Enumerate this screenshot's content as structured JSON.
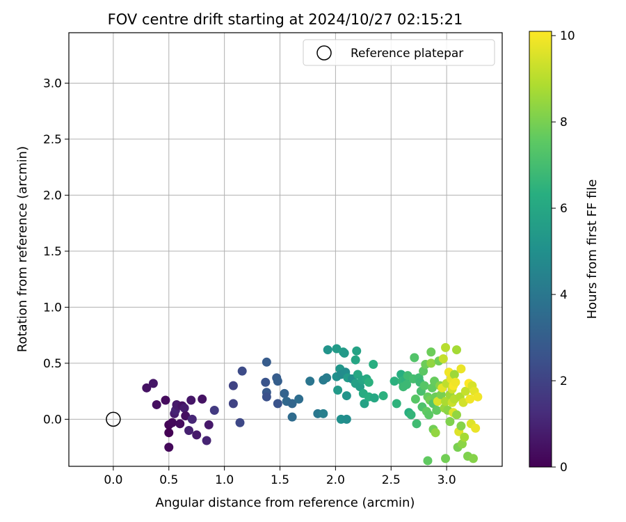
{
  "chart_data": {
    "type": "scatter",
    "title": "FOV centre drift starting at 2024/10/27 02:15:21",
    "xlabel": "Angular distance from reference (arcmin)",
    "ylabel": "Rotation from reference (arcmin)",
    "xlim": [
      -0.4,
      3.5
    ],
    "ylim": [
      -0.42,
      3.45
    ],
    "x_ticks": [
      0.0,
      0.5,
      1.0,
      1.5,
      2.0,
      2.5,
      3.0
    ],
    "y_ticks": [
      0.0,
      0.5,
      1.0,
      1.5,
      2.0,
      2.5,
      3.0
    ],
    "grid": true,
    "legend": {
      "placement": "top-right",
      "entries": [
        "Reference platepar"
      ]
    },
    "reference_point": {
      "x": 0.0,
      "y": 0.0,
      "marker": "open-circle"
    },
    "colorbar": {
      "label": "Hours from first FF file",
      "min": 0,
      "max": 10.1,
      "ticks": [
        0,
        2,
        4,
        6,
        8,
        10
      ],
      "colormap": "viridis"
    },
    "points": [
      {
        "x": 0.3,
        "y": 0.28,
        "h": 0.5
      },
      {
        "x": 0.36,
        "y": 0.32,
        "h": 0.6
      },
      {
        "x": 0.39,
        "y": 0.13,
        "h": 0.4
      },
      {
        "x": 0.47,
        "y": 0.17,
        "h": 0.3
      },
      {
        "x": 0.5,
        "y": -0.05,
        "h": 0.1
      },
      {
        "x": 0.5,
        "y": -0.12,
        "h": 0.0
      },
      {
        "x": 0.5,
        "y": -0.25,
        "h": 0.2
      },
      {
        "x": 0.53,
        "y": -0.03,
        "h": 0.2
      },
      {
        "x": 0.55,
        "y": 0.05,
        "h": 0.8
      },
      {
        "x": 0.56,
        "y": 0.08,
        "h": 1.0
      },
      {
        "x": 0.57,
        "y": 0.13,
        "h": 0.6
      },
      {
        "x": 0.58,
        "y": 0.12,
        "h": 0.7
      },
      {
        "x": 0.6,
        "y": -0.04,
        "h": 0.3
      },
      {
        "x": 0.62,
        "y": 0.12,
        "h": 0.5
      },
      {
        "x": 0.64,
        "y": 0.1,
        "h": 0.8
      },
      {
        "x": 0.65,
        "y": 0.03,
        "h": 0.4
      },
      {
        "x": 0.68,
        "y": -0.1,
        "h": 0.9
      },
      {
        "x": 0.7,
        "y": 0.17,
        "h": 0.6
      },
      {
        "x": 0.71,
        "y": 0.0,
        "h": 1.1
      },
      {
        "x": 0.75,
        "y": -0.14,
        "h": 0.7
      },
      {
        "x": 0.8,
        "y": 0.18,
        "h": 0.5
      },
      {
        "x": 0.84,
        "y": -0.19,
        "h": 1.0
      },
      {
        "x": 0.86,
        "y": -0.05,
        "h": 0.7
      },
      {
        "x": 0.91,
        "y": 0.08,
        "h": 1.7
      },
      {
        "x": 1.08,
        "y": 0.3,
        "h": 2.0
      },
      {
        "x": 1.08,
        "y": 0.14,
        "h": 2.0
      },
      {
        "x": 1.14,
        "y": -0.03,
        "h": 2.2
      },
      {
        "x": 1.16,
        "y": 0.43,
        "h": 2.3
      },
      {
        "x": 1.37,
        "y": 0.33,
        "h": 2.6
      },
      {
        "x": 1.38,
        "y": 0.51,
        "h": 2.9
      },
      {
        "x": 1.38,
        "y": 0.24,
        "h": 2.8
      },
      {
        "x": 1.38,
        "y": 0.2,
        "h": 2.5
      },
      {
        "x": 1.47,
        "y": 0.37,
        "h": 2.9
      },
      {
        "x": 1.48,
        "y": 0.34,
        "h": 3.0
      },
      {
        "x": 1.48,
        "y": 0.14,
        "h": 2.6
      },
      {
        "x": 1.54,
        "y": 0.23,
        "h": 3.2
      },
      {
        "x": 1.56,
        "y": 0.16,
        "h": 3.4
      },
      {
        "x": 1.61,
        "y": 0.02,
        "h": 3.5
      },
      {
        "x": 1.61,
        "y": 0.14,
        "h": 3.3
      },
      {
        "x": 1.67,
        "y": 0.18,
        "h": 3.6
      },
      {
        "x": 1.77,
        "y": 0.34,
        "h": 3.9
      },
      {
        "x": 1.84,
        "y": 0.05,
        "h": 4.0
      },
      {
        "x": 1.89,
        "y": 0.35,
        "h": 4.1
      },
      {
        "x": 1.89,
        "y": 0.05,
        "h": 4.3
      },
      {
        "x": 1.92,
        "y": 0.37,
        "h": 4.2
      },
      {
        "x": 1.93,
        "y": 0.62,
        "h": 5.2
      },
      {
        "x": 2.01,
        "y": 0.63,
        "h": 5.5
      },
      {
        "x": 2.01,
        "y": 0.38,
        "h": 5.0
      },
      {
        "x": 2.02,
        "y": 0.26,
        "h": 5.4
      },
      {
        "x": 2.04,
        "y": 0.45,
        "h": 5.3
      },
      {
        "x": 2.05,
        "y": 0.4,
        "h": 4.8
      },
      {
        "x": 2.05,
        "y": 0.0,
        "h": 5.0
      },
      {
        "x": 2.07,
        "y": 0.6,
        "h": 5.6
      },
      {
        "x": 2.08,
        "y": 0.59,
        "h": 5.4
      },
      {
        "x": 2.09,
        "y": 0.42,
        "h": 4.9
      },
      {
        "x": 2.1,
        "y": 0.21,
        "h": 5.2
      },
      {
        "x": 2.1,
        "y": 0.0,
        "h": 4.9
      },
      {
        "x": 2.11,
        "y": 0.37,
        "h": 5.5
      },
      {
        "x": 2.15,
        "y": 0.36,
        "h": 5.0
      },
      {
        "x": 2.18,
        "y": 0.32,
        "h": 5.7
      },
      {
        "x": 2.18,
        "y": 0.53,
        "h": 5.9
      },
      {
        "x": 2.19,
        "y": 0.61,
        "h": 5.8
      },
      {
        "x": 2.2,
        "y": 0.4,
        "h": 6.0
      },
      {
        "x": 2.22,
        "y": 0.29,
        "h": 5.6
      },
      {
        "x": 2.24,
        "y": 0.35,
        "h": 5.9
      },
      {
        "x": 2.25,
        "y": 0.23,
        "h": 6.2
      },
      {
        "x": 2.26,
        "y": 0.14,
        "h": 5.8
      },
      {
        "x": 2.28,
        "y": 0.36,
        "h": 6.1
      },
      {
        "x": 2.3,
        "y": 0.33,
        "h": 6.4
      },
      {
        "x": 2.3,
        "y": 0.2,
        "h": 6.3
      },
      {
        "x": 2.34,
        "y": 0.49,
        "h": 6.3
      },
      {
        "x": 2.35,
        "y": 0.19,
        "h": 6.0
      },
      {
        "x": 2.43,
        "y": 0.21,
        "h": 6.4
      },
      {
        "x": 2.53,
        "y": 0.34,
        "h": 6.4
      },
      {
        "x": 2.55,
        "y": 0.14,
        "h": 6.5
      },
      {
        "x": 2.59,
        "y": 0.4,
        "h": 6.3
      },
      {
        "x": 2.6,
        "y": 0.34,
        "h": 6.6
      },
      {
        "x": 2.61,
        "y": 0.29,
        "h": 6.8
      },
      {
        "x": 2.63,
        "y": 0.36,
        "h": 6.5
      },
      {
        "x": 2.64,
        "y": 0.31,
        "h": 6.8
      },
      {
        "x": 2.65,
        "y": 0.39,
        "h": 6.9
      },
      {
        "x": 2.66,
        "y": 0.06,
        "h": 6.3
      },
      {
        "x": 2.68,
        "y": 0.04,
        "h": 6.6
      },
      {
        "x": 2.7,
        "y": 0.36,
        "h": 7.0
      },
      {
        "x": 2.71,
        "y": 0.55,
        "h": 7.3
      },
      {
        "x": 2.72,
        "y": 0.18,
        "h": 7.4
      },
      {
        "x": 2.73,
        "y": -0.04,
        "h": 6.9
      },
      {
        "x": 2.75,
        "y": 0.37,
        "h": 6.9
      },
      {
        "x": 2.76,
        "y": 0.33,
        "h": 6.8
      },
      {
        "x": 2.77,
        "y": 0.25,
        "h": 7.1
      },
      {
        "x": 2.78,
        "y": 0.11,
        "h": 7.2
      },
      {
        "x": 2.79,
        "y": 0.43,
        "h": 7.5
      },
      {
        "x": 2.8,
        "y": 0.3,
        "h": 7.4
      },
      {
        "x": 2.81,
        "y": 0.49,
        "h": 7.8
      },
      {
        "x": 2.82,
        "y": 0.07,
        "h": 7.6
      },
      {
        "x": 2.83,
        "y": 0.2,
        "h": 7.7
      },
      {
        "x": 2.84,
        "y": 0.04,
        "h": 7.5
      },
      {
        "x": 2.85,
        "y": 0.17,
        "h": 7.9
      },
      {
        "x": 2.86,
        "y": 0.5,
        "h": 8.4
      },
      {
        "x": 2.86,
        "y": 0.6,
        "h": 7.8
      },
      {
        "x": 2.87,
        "y": 0.28,
        "h": 7.6
      },
      {
        "x": 2.88,
        "y": -0.09,
        "h": 7.9
      },
      {
        "x": 2.88,
        "y": 0.14,
        "h": 7.3
      },
      {
        "x": 2.89,
        "y": 0.34,
        "h": 7.7
      },
      {
        "x": 2.9,
        "y": 0.2,
        "h": 7.8
      },
      {
        "x": 2.9,
        "y": -0.12,
        "h": 8.4
      },
      {
        "x": 2.91,
        "y": 0.08,
        "h": 7.6
      },
      {
        "x": 2.92,
        "y": 0.16,
        "h": 9.5
      },
      {
        "x": 2.93,
        "y": 0.52,
        "h": 7.9
      },
      {
        "x": 2.94,
        "y": 0.3,
        "h": 8.2
      },
      {
        "x": 2.95,
        "y": 0.22,
        "h": 8.0
      },
      {
        "x": 2.96,
        "y": 0.28,
        "h": 9.7
      },
      {
        "x": 2.97,
        "y": 0.54,
        "h": 9.2
      },
      {
        "x": 2.98,
        "y": 0.1,
        "h": 8.5
      },
      {
        "x": 2.99,
        "y": 0.64,
        "h": 9.0
      },
      {
        "x": 2.99,
        "y": 0.16,
        "h": 8.8
      },
      {
        "x": 3.0,
        "y": 0.32,
        "h": 9.1
      },
      {
        "x": 3.01,
        "y": 0.08,
        "h": 8.3
      },
      {
        "x": 3.02,
        "y": 0.42,
        "h": 9.9
      },
      {
        "x": 3.03,
        "y": 0.22,
        "h": 8.6
      },
      {
        "x": 3.03,
        "y": -0.02,
        "h": 8.1
      },
      {
        "x": 3.04,
        "y": 0.36,
        "h": 9.8
      },
      {
        "x": 3.05,
        "y": 0.27,
        "h": 9.4
      },
      {
        "x": 3.05,
        "y": 0.15,
        "h": 9.3
      },
      {
        "x": 3.06,
        "y": 0.3,
        "h": 10.0
      },
      {
        "x": 3.06,
        "y": 0.06,
        "h": 9.6
      },
      {
        "x": 3.07,
        "y": 0.4,
        "h": 8.6
      },
      {
        "x": 3.07,
        "y": 0.18,
        "h": 9.0
      },
      {
        "x": 3.08,
        "y": 0.33,
        "h": 9.9
      },
      {
        "x": 3.09,
        "y": 0.62,
        "h": 8.7
      },
      {
        "x": 3.09,
        "y": 0.04,
        "h": 8.4
      },
      {
        "x": 3.1,
        "y": -0.25,
        "h": 8.0
      },
      {
        "x": 3.11,
        "y": -0.11,
        "h": 9.6
      },
      {
        "x": 3.12,
        "y": 0.2,
        "h": 8.9
      },
      {
        "x": 3.13,
        "y": 0.45,
        "h": 9.8
      },
      {
        "x": 3.13,
        "y": -0.06,
        "h": 8.2
      },
      {
        "x": 3.14,
        "y": -0.22,
        "h": 8.3
      },
      {
        "x": 3.15,
        "y": 0.15,
        "h": 9.4
      },
      {
        "x": 3.16,
        "y": -0.16,
        "h": 8.7
      },
      {
        "x": 3.17,
        "y": 0.25,
        "h": 9.2
      },
      {
        "x": 3.19,
        "y": -0.33,
        "h": 8.1
      },
      {
        "x": 3.2,
        "y": 0.32,
        "h": 10.1
      },
      {
        "x": 3.21,
        "y": 0.18,
        "h": 9.9
      },
      {
        "x": 3.22,
        "y": -0.04,
        "h": 9.6
      },
      {
        "x": 3.23,
        "y": 0.3,
        "h": 9.5
      },
      {
        "x": 3.24,
        "y": -0.35,
        "h": 8.2
      },
      {
        "x": 3.25,
        "y": 0.25,
        "h": 9.7
      },
      {
        "x": 3.26,
        "y": -0.08,
        "h": 9.8
      },
      {
        "x": 3.28,
        "y": 0.2,
        "h": 9.9
      },
      {
        "x": 2.83,
        "y": -0.37,
        "h": 7.6
      },
      {
        "x": 2.99,
        "y": -0.35,
        "h": 7.9
      }
    ]
  }
}
